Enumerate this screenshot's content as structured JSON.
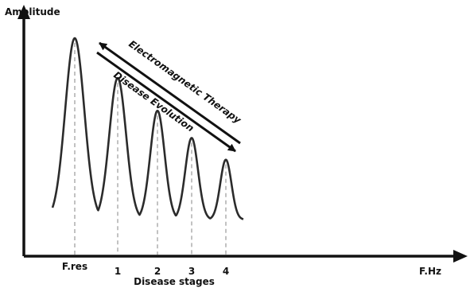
{
  "chart_data": {
    "type": "line",
    "xlabel": "Disease stages",
    "ylabel": "Amplitude",
    "x_axis_end_label": "F.Hz",
    "ticks": [
      "F.res",
      "1",
      "2",
      "3",
      "4"
    ],
    "series": [
      {
        "values": [
          1.0,
          0.78,
          0.6,
          0.45,
          0.33
        ]
      }
    ],
    "ylim": [
      0,
      1.1
    ],
    "grid": false,
    "annotations": [
      {
        "text": "Electromagnetic Therapy",
        "direction": "toward F.res"
      },
      {
        "text": "Disease Evolution",
        "direction": "toward stage 4"
      }
    ],
    "colors": {
      "axis": "#111111",
      "curve": "#2b2b2b",
      "guide": "#999999"
    }
  }
}
